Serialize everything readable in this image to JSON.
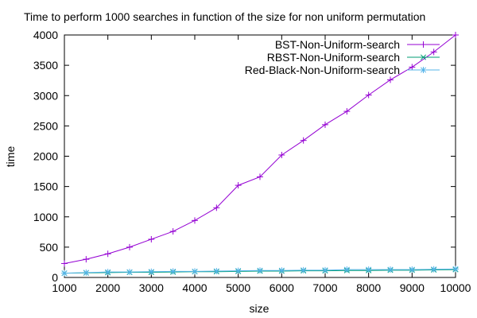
{
  "chart_data": {
    "type": "line",
    "title": "Time to perform 1000 searches in function of the size for non uniform permutation",
    "xlabel": "size",
    "ylabel": "time",
    "xlim": [
      1000,
      10000
    ],
    "ylim": [
      0,
      4000
    ],
    "xticks": [
      1000,
      2000,
      3000,
      4000,
      5000,
      6000,
      7000,
      8000,
      9000,
      10000
    ],
    "yticks": [
      0,
      500,
      1000,
      1500,
      2000,
      2500,
      3000,
      3500,
      4000
    ],
    "legend_position": "top-right",
    "grid": false,
    "series": [
      {
        "name": "BST-Non-Uniform-search",
        "color": "#9400d3",
        "marker": "plus",
        "x": [
          1000,
          1500,
          2000,
          2500,
          3000,
          3500,
          4000,
          4500,
          5000,
          5500,
          6000,
          6500,
          7000,
          7500,
          8000,
          8500,
          9000,
          9500,
          10000
        ],
        "y": [
          230,
          300,
          390,
          500,
          630,
          760,
          940,
          1150,
          1520,
          1660,
          2020,
          2260,
          2520,
          2740,
          3010,
          3260,
          3470,
          3720,
          4000
        ]
      },
      {
        "name": "RBST-Non-Uniform-search",
        "color": "#009e73",
        "marker": "cross",
        "x": [
          1000,
          1500,
          2000,
          2500,
          3000,
          3500,
          4000,
          4500,
          5000,
          5500,
          6000,
          6500,
          7000,
          7500,
          8000,
          8500,
          9000,
          9500,
          10000
        ],
        "y": [
          70,
          75,
          80,
          85,
          85,
          90,
          95,
          95,
          100,
          105,
          105,
          110,
          110,
          115,
          115,
          120,
          120,
          125,
          130
        ]
      },
      {
        "name": "Red-Black-Non-Uniform-search",
        "color": "#56b4e9",
        "marker": "star",
        "x": [
          1000,
          1500,
          2000,
          2500,
          3000,
          3500,
          4000,
          4500,
          5000,
          5500,
          6000,
          6500,
          7000,
          7500,
          8000,
          8500,
          9000,
          9500,
          10000
        ],
        "y": [
          70,
          80,
          90,
          90,
          95,
          100,
          100,
          105,
          110,
          115,
          115,
          120,
          120,
          130,
          130,
          130,
          130,
          135,
          140
        ]
      }
    ]
  }
}
